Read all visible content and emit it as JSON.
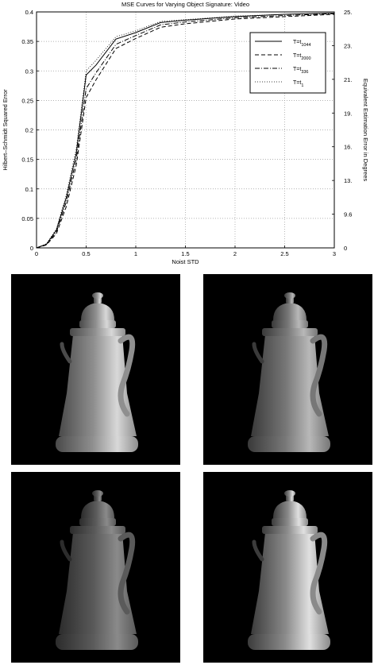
{
  "chart_data": {
    "type": "line",
    "title": "MSE Curves for Varying Object Signature: Video",
    "xlabel": "Noist STD",
    "ylabel": "Hilbert–Schmidt Squared Error",
    "y2label": "Equivalent Estimation Error in Degrees",
    "xlim": [
      0,
      3
    ],
    "ylim": [
      0,
      0.4
    ],
    "x_ticks": [
      "0",
      "0.5",
      "1",
      "1.5",
      "2",
      "2.5",
      "3"
    ],
    "y_ticks": [
      "0",
      "0.05",
      "0.1",
      "0.15",
      "0.2",
      "0.25",
      "0.3",
      "0.35",
      "0.4"
    ],
    "y2_ticks": [
      "0",
      "9.6",
      "13.",
      "16.",
      "19.",
      "21.",
      "23.",
      "25."
    ],
    "grid": true,
    "legend_position": "top-right",
    "series": [
      {
        "name": "T=t",
        "subscript": "1044",
        "style": "solid",
        "x": [
          0,
          0.1,
          0.2,
          0.3,
          0.4,
          0.5,
          0.6,
          0.8,
          1.0,
          1.25,
          1.5,
          2.0,
          2.5,
          3.0
        ],
        "y": [
          0,
          0.006,
          0.03,
          0.085,
          0.16,
          0.293,
          0.31,
          0.354,
          0.365,
          0.382,
          0.386,
          0.392,
          0.396,
          0.398
        ]
      },
      {
        "name": "T=t",
        "subscript": "2000",
        "style": "dashed",
        "x": [
          0,
          0.1,
          0.2,
          0.3,
          0.4,
          0.5,
          0.6,
          0.8,
          1.0,
          1.25,
          1.5,
          2.0,
          2.5,
          3.0
        ],
        "y": [
          0,
          0.005,
          0.024,
          0.07,
          0.14,
          0.255,
          0.285,
          0.338,
          0.355,
          0.374,
          0.38,
          0.388,
          0.392,
          0.396
        ]
      },
      {
        "name": "T=t",
        "subscript": "336",
        "style": "dashdot",
        "x": [
          0,
          0.1,
          0.2,
          0.3,
          0.4,
          0.5,
          0.6,
          0.8,
          1.0,
          1.25,
          1.5,
          2.0,
          2.5,
          3.0
        ],
        "y": [
          0,
          0.006,
          0.027,
          0.078,
          0.15,
          0.27,
          0.297,
          0.345,
          0.36,
          0.378,
          0.383,
          0.39,
          0.394,
          0.397
        ]
      },
      {
        "name": "T=t",
        "subscript": "1",
        "style": "dotted",
        "x": [
          0,
          0.1,
          0.2,
          0.3,
          0.4,
          0.5,
          0.6,
          0.8,
          1.0,
          1.25,
          1.5,
          2.0,
          2.5,
          3.0
        ],
        "y": [
          0,
          0.007,
          0.032,
          0.09,
          0.168,
          0.3,
          0.318,
          0.358,
          0.368,
          0.384,
          0.387,
          0.393,
          0.396,
          0.398
        ]
      }
    ]
  },
  "renders": [
    {
      "body": "#8f8f8f",
      "shade": "#d8d8d8",
      "dark": "#4a4a4a"
    },
    {
      "body": "#777777",
      "shade": "#b8b8b8",
      "dark": "#3a3a3a"
    },
    {
      "body": "#5a5a5a",
      "shade": "#8a8a8a",
      "dark": "#2c2c2c"
    },
    {
      "body": "#8a8a8a",
      "shade": "#e0e0e0",
      "dark": "#3c3c3c"
    }
  ]
}
